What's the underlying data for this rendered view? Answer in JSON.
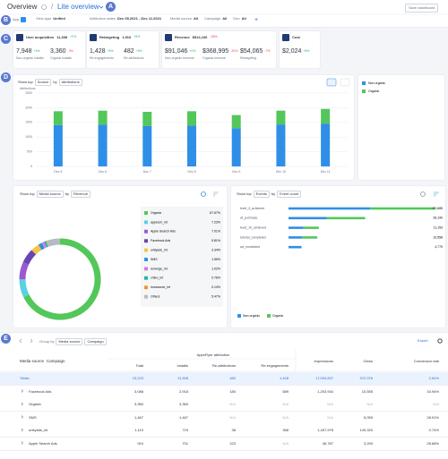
{
  "badges": {
    "header": "A",
    "filters": "B",
    "kpis": "C",
    "charts": "D",
    "table": "E"
  },
  "header": {
    "title": "Overview",
    "separator": "/",
    "dashboard": "Lite overview",
    "save": "Save dashboard"
  },
  "filters": [
    {
      "label": "App"
    },
    {
      "label": "View type",
      "value": "Unified"
    },
    {
      "label": "Attribution dates",
      "value": "Dec 05.2021 - Dec 11.2021"
    },
    {
      "label": "Media source",
      "value": "All"
    },
    {
      "label": "Campaign",
      "value": "All"
    },
    {
      "label": "Geo",
      "value": "All"
    },
    {
      "label": "+"
    }
  ],
  "kpis": [
    {
      "title": "User acquisition",
      "total": "11,308",
      "change": "+2%",
      "metrics": [
        {
          "value": "7,948",
          "change": "+4%",
          "label": "Non-organic installs"
        },
        {
          "value": "3,360",
          "change": "-3%",
          "label": "Organic installs"
        }
      ]
    },
    {
      "title": "Retargeting",
      "total": "1,910",
      "change": "+6%",
      "metrics": [
        {
          "value": "1,428",
          "change": "+6%",
          "label": "Re-engagements"
        },
        {
          "value": "482",
          "change": "+5%",
          "label": "Re-attributions"
        }
      ]
    },
    {
      "title": "Revenue",
      "total": "$514,106",
      "change": "-28%",
      "metrics": [
        {
          "value": "$91,046",
          "change": "+0%",
          "label": "Non-organic revenue"
        },
        {
          "value": "$368,995",
          "change": "-32%",
          "label": "Organic revenue"
        },
        {
          "value": "$54,065",
          "change": "-7%",
          "label": "Retargeting"
        }
      ]
    },
    {
      "title": "Cost",
      "metrics": [
        {
          "value": "$2,024",
          "change": "+8%"
        }
      ]
    }
  ],
  "chart_data": [
    {
      "type": "bar",
      "stacked": true,
      "controls": [
        "Show top",
        "Source",
        "by",
        "Attributions"
      ],
      "y_label": "Attributions",
      "categories": [
        "Dec 5",
        "Dec 6",
        "Dec 7",
        "Dec 8",
        "Dec 9",
        "Dec 10",
        "Dec 11"
      ],
      "series": [
        {
          "name": "Non-organic",
          "color": "#2f8fe8",
          "values": [
            1410,
            1420,
            1380,
            1390,
            1300,
            1430,
            1460
          ]
        },
        {
          "name": "Organic",
          "color": "#53c75a",
          "values": [
            470,
            480,
            480,
            490,
            450,
            470,
            500
          ]
        }
      ],
      "ylim": [
        0,
        2500
      ],
      "yticks": [
        0,
        500,
        1000,
        1500,
        2000,
        2500
      ],
      "grid": true
    },
    {
      "type": "donut",
      "controls": [
        "Show top",
        "Media source",
        "by",
        "Revenue"
      ],
      "categories": [
        "Organic",
        "appiocm_int",
        "Apple Search Ads",
        "Facebook Ads",
        "unityads_int",
        "SMS",
        "remerge_int",
        "criteo_int",
        "ironsource_int",
        "Others"
      ],
      "values": [
        67.67,
        7.23,
        7.01,
        5.81,
        3.34,
        1.55,
        1.02,
        0.76,
        0.14,
        5.47
      ],
      "value_labels": [
        "67.67%",
        "7.23%",
        "7.01%",
        "5.81%",
        "3.34%",
        "1.55%",
        "1.02%",
        "0.76%",
        "0.14%",
        "5.47%"
      ],
      "colors": [
        "#53c75a",
        "#5ad1e0",
        "#9b59d0",
        "#6a45b0",
        "#f4c542",
        "#2f8fe8",
        "#d17ee0",
        "#29b3a0",
        "#f5922f",
        "#b5bac3"
      ]
    },
    {
      "type": "hbar",
      "stacked": true,
      "controls": [
        "Show top",
        "Events",
        "by",
        "Event count"
      ],
      "categories": [
        "level_3_achieved",
        "af_purchase",
        "level_10_achieved",
        "tutorial_completed",
        "ad_monetized"
      ],
      "series": [
        {
          "name": "Non-organic",
          "color": "#2f8fe8",
          "values": [
            30000,
            14000,
            5500,
            5000,
            4779
          ]
        },
        {
          "name": "Organic",
          "color": "#53c75a",
          "values": [
            23685,
            14190,
            5653,
            5558,
            0
          ]
        }
      ],
      "total_labels": [
        "53,685",
        "28,190",
        "11,153",
        "10,558",
        "4,779"
      ]
    }
  ],
  "table": {
    "toolbar": {
      "group_by": "Group by",
      "levels": [
        "Media source",
        "Campaign"
      ],
      "export": "Export"
    },
    "group_header": "AppsFlyer attribution",
    "row_header": [
      "Media source",
      "Campaign"
    ],
    "columns": [
      "Total",
      "Installs",
      "Re-attributions",
      "Re-engagements",
      "Impressions",
      "Clicks",
      "Conversion rate"
    ],
    "rows": [
      [
        "Totals",
        "13,223",
        "11,308",
        "482",
        "1,428",
        "17,003,837",
        "372,976",
        "2.64%"
      ],
      [
        "Facebook Ads",
        "3,088",
        "2,918",
        "180",
        "589",
        "1,203,934",
        "10,555",
        "34.94%"
      ],
      [
        "Organic",
        "3,360",
        "3,360",
        "N/A",
        "N/A",
        "N/A",
        "N/A",
        "N/A"
      ],
      [
        "SMS",
        "1,467",
        "1,467",
        "N/A",
        "N/A",
        "N/A",
        "5,059",
        "28.91%"
      ],
      [
        "unityads_int",
        "1,110",
        "715",
        "38",
        "358",
        "1,407,978",
        "149,320",
        "0.74%"
      ],
      [
        "Apple Search Ads",
        "924",
        "701",
        "223",
        "N/A",
        "46,787",
        "3,200",
        "28.88%"
      ]
    ]
  }
}
